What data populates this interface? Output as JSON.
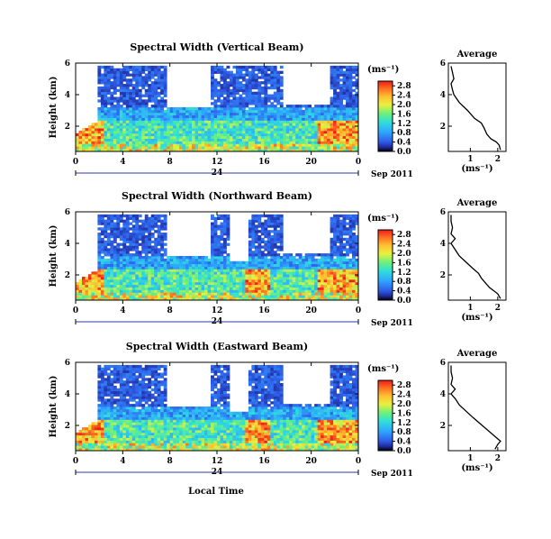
{
  "figure": {
    "xlabel": "Local Time"
  },
  "chart_data": [
    {
      "type": "heatmap",
      "title": "Spectral Width (Vertical Beam)",
      "ylabel": "Height (km)",
      "xlim": [
        0,
        24
      ],
      "ylim": [
        0.4,
        6
      ],
      "xticks": [
        "0",
        "4",
        "8",
        "12",
        "16",
        "20",
        "0"
      ],
      "yticks": [
        "2",
        "4",
        "6"
      ],
      "date_labels": {
        "midnight": "24",
        "date": "Sep 2011"
      },
      "colorbar": {
        "unit": "(ms⁻¹)",
        "ticks": [
          "0.0",
          "0.4",
          "0.8",
          "1.2",
          "1.6",
          "2.0",
          "2.4",
          "2.8"
        ],
        "range": [
          0,
          3.0
        ]
      },
      "profile": {
        "title": "Average",
        "xlabel": "(ms⁻¹)",
        "xticks": [
          "1",
          "2"
        ],
        "yticks": [
          "2",
          "4",
          "6"
        ],
        "xlim": [
          0.2,
          2.3
        ],
        "ylim": [
          0.4,
          6
        ],
        "points": [
          [
            2.1,
            0.5
          ],
          [
            2.05,
            0.8
          ],
          [
            1.95,
            1.0
          ],
          [
            1.75,
            1.2
          ],
          [
            1.6,
            1.5
          ],
          [
            1.5,
            1.9
          ],
          [
            1.4,
            2.2
          ],
          [
            1.15,
            2.5
          ],
          [
            0.9,
            3.0
          ],
          [
            0.6,
            3.5
          ],
          [
            0.4,
            4.0
          ],
          [
            0.35,
            4.3
          ],
          [
            0.3,
            4.7
          ],
          [
            0.4,
            5.0
          ],
          [
            0.35,
            5.4
          ],
          [
            0.3,
            5.8
          ]
        ]
      }
    },
    {
      "type": "heatmap",
      "title": "Spectral Width (Northward Beam)",
      "ylabel": "Height (km)",
      "xlim": [
        0,
        24
      ],
      "ylim": [
        0.4,
        6
      ],
      "xticks": [
        "0",
        "4",
        "8",
        "12",
        "16",
        "20",
        "0"
      ],
      "yticks": [
        "2",
        "4",
        "6"
      ],
      "date_labels": {
        "midnight": "24",
        "date": "Sep 2011"
      },
      "colorbar": {
        "unit": "(ms⁻¹)",
        "ticks": [
          "0.0",
          "0.4",
          "0.8",
          "1.2",
          "1.6",
          "2.0",
          "2.4",
          "2.8"
        ],
        "range": [
          0,
          3.0
        ]
      },
      "profile": {
        "title": "Average",
        "xlabel": "(ms⁻¹)",
        "xticks": [
          "1",
          "2"
        ],
        "yticks": [
          "2",
          "4",
          "6"
        ],
        "xlim": [
          0.2,
          2.3
        ],
        "ylim": [
          0.4,
          6
        ],
        "points": [
          [
            2.1,
            0.5
          ],
          [
            2.0,
            0.8
          ],
          [
            1.85,
            1.0
          ],
          [
            1.7,
            1.2
          ],
          [
            1.55,
            1.5
          ],
          [
            1.4,
            1.8
          ],
          [
            1.3,
            2.1
          ],
          [
            1.1,
            2.4
          ],
          [
            0.85,
            2.8
          ],
          [
            0.6,
            3.2
          ],
          [
            0.45,
            3.6
          ],
          [
            0.3,
            4.0
          ],
          [
            0.45,
            4.3
          ],
          [
            0.3,
            4.6
          ],
          [
            0.35,
            5.0
          ],
          [
            0.3,
            5.4
          ],
          [
            0.3,
            5.8
          ]
        ]
      }
    },
    {
      "type": "heatmap",
      "title": "Spectral Width (Eastward Beam)",
      "ylabel": "Height (km)",
      "xlim": [
        0,
        24
      ],
      "ylim": [
        0.4,
        6
      ],
      "xticks": [
        "0",
        "4",
        "8",
        "12",
        "16",
        "20",
        "0"
      ],
      "yticks": [
        "2",
        "4",
        "6"
      ],
      "date_labels": {
        "midnight": "24",
        "date": "Sep 2011"
      },
      "colorbar": {
        "unit": "(ms⁻¹)",
        "ticks": [
          "0.0",
          "0.4",
          "0.8",
          "1.2",
          "1.6",
          "2.0",
          "2.4",
          "2.8"
        ],
        "range": [
          0,
          3.0
        ]
      },
      "profile": {
        "title": "Average",
        "xlabel": "(ms⁻¹)",
        "xticks": [
          "1",
          "2"
        ],
        "yticks": [
          "2",
          "4",
          "6"
        ],
        "xlim": [
          0.2,
          2.3
        ],
        "ylim": [
          0.4,
          6
        ],
        "points": [
          [
            1.9,
            0.5
          ],
          [
            2.0,
            0.8
          ],
          [
            2.1,
            1.0
          ],
          [
            1.9,
            1.3
          ],
          [
            1.7,
            1.6
          ],
          [
            1.5,
            1.9
          ],
          [
            1.3,
            2.2
          ],
          [
            1.1,
            2.5
          ],
          [
            0.85,
            2.9
          ],
          [
            0.6,
            3.3
          ],
          [
            0.45,
            3.7
          ],
          [
            0.3,
            4.0
          ],
          [
            0.45,
            4.3
          ],
          [
            0.3,
            4.6
          ],
          [
            0.35,
            5.0
          ],
          [
            0.3,
            5.4
          ],
          [
            0.3,
            5.8
          ]
        ]
      }
    }
  ]
}
